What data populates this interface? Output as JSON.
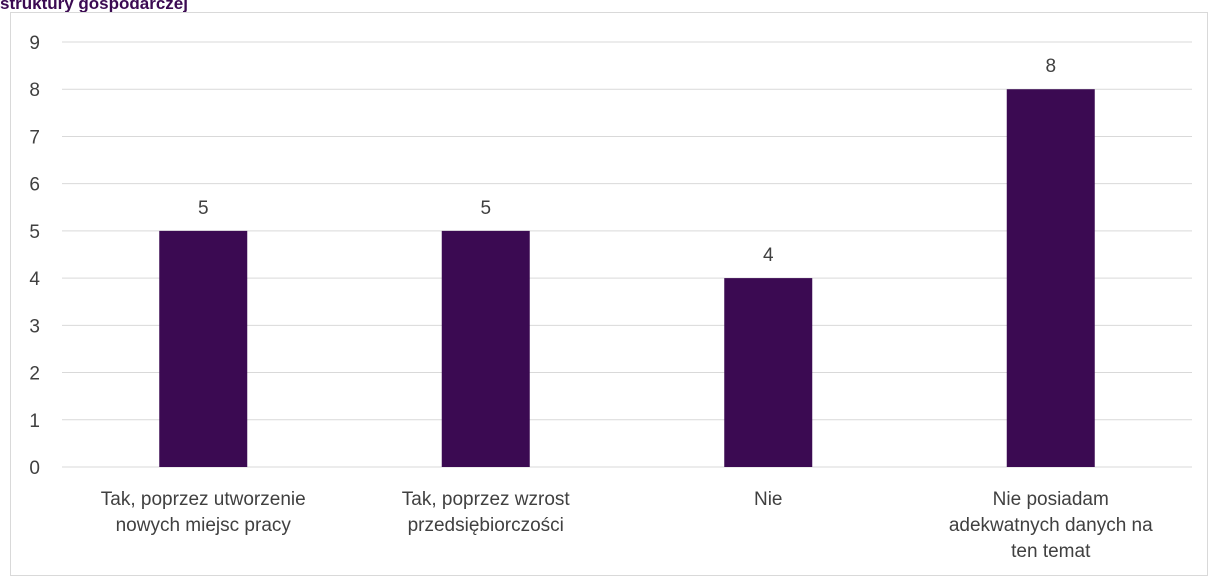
{
  "title": "struktury gospodarczej",
  "title_color": "#3b0a52",
  "chart_data": {
    "type": "bar",
    "title": "struktury gospodarczej",
    "categories": [
      [
        "Tak, poprzez utworzenie",
        "nowych miejsc pracy"
      ],
      [
        "Tak, poprzez wzrost",
        "przedsiębiorczości"
      ],
      [
        "Nie"
      ],
      [
        "Nie posiadam",
        "adekwatnych danych na",
        "ten temat"
      ]
    ],
    "values": [
      5,
      5,
      4,
      8
    ],
    "ylim": [
      0,
      9
    ],
    "yticks": [
      "0",
      "1",
      "2",
      "3",
      "4",
      "5",
      "6",
      "7",
      "8",
      "9"
    ],
    "xlabel": "",
    "ylabel": "",
    "grid": true,
    "legend": "none",
    "bar_color": "#3b0a52",
    "grid_color": "#d9d9d9",
    "text_color": "#404040"
  }
}
